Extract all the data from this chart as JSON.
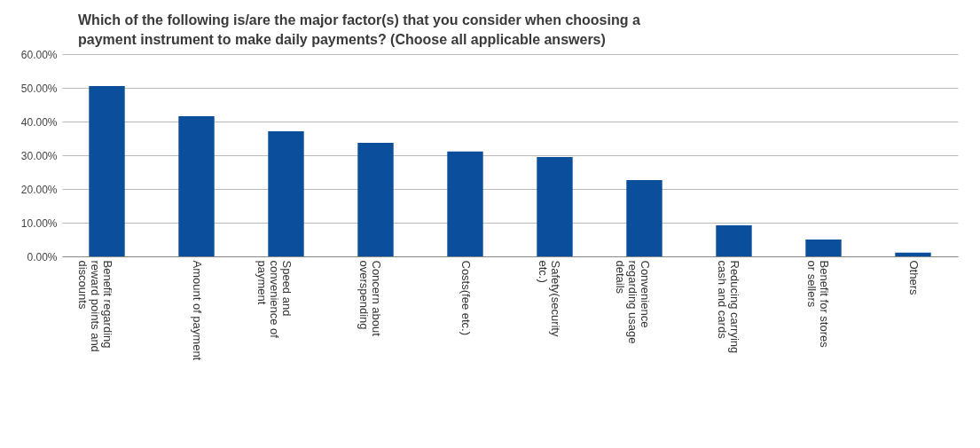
{
  "chart_data": {
    "type": "bar",
    "title": "Which of the following is/are the major factor(s) that you consider when choosing a payment instrument to make daily payments? (Choose all applicable answers)",
    "categories": [
      "Benefit regarding reward points and discounts",
      "Amount of payment",
      "Speed and convenience of payment",
      "Concern about overspending",
      "Costs(fee etc.)",
      "Safety(security etc.)",
      "Convenience regarding usage details",
      "Reducing carrying cash and cards",
      "Benefit for stores or sellers",
      "Others"
    ],
    "values": [
      50.5,
      41.6,
      37.1,
      33.7,
      31.1,
      29.5,
      22.6,
      9.2,
      5.0,
      1.1
    ],
    "color": "#0b4f9c",
    "ylim": [
      0,
      60
    ],
    "yticks": [
      {
        "value": 0,
        "label": "0.00%"
      },
      {
        "value": 10,
        "label": "10.00%"
      },
      {
        "value": 20,
        "label": "20.00%"
      },
      {
        "value": 30,
        "label": "30.00%"
      },
      {
        "value": 40,
        "label": "40.00%"
      },
      {
        "value": 50,
        "label": "50.00%"
      },
      {
        "value": 60,
        "label": "60.00%"
      }
    ],
    "grid": "y"
  }
}
